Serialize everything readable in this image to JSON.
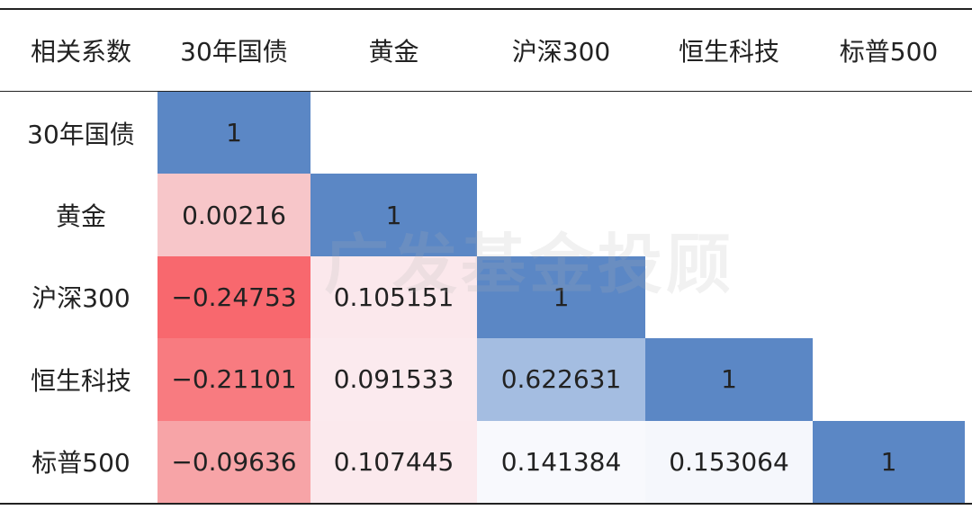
{
  "header": {
    "corner": "相关系数",
    "columns": [
      "30年国债",
      "黄金",
      "沪深300",
      "恒生科技",
      "标普500"
    ]
  },
  "table": {
    "row_labels": [
      "30年国债",
      "黄金",
      "沪深300",
      "恒生科技",
      "标普500"
    ],
    "rows": [
      [
        "1"
      ],
      [
        "0.00216",
        "1"
      ],
      [
        "−0.24753",
        "0.105151",
        "1"
      ],
      [
        "−0.21101",
        "0.091533",
        "0.622631",
        "1"
      ],
      [
        "−0.09636",
        "0.107445",
        "0.141384",
        "0.153064",
        "1"
      ]
    ],
    "cell_colors": [
      [
        "#5b87c5"
      ],
      [
        "#f7c6c9",
        "#5b87c5"
      ],
      [
        "#f8686e",
        "#fbe8ec",
        "#5b87c5"
      ],
      [
        "#f87b80",
        "#fbeaee",
        "#a4bde1",
        "#5b87c5"
      ],
      [
        "#f7a4a7",
        "#fbe9ed",
        "#f8f9fd",
        "#f5f7fc",
        "#5b87c5"
      ]
    ]
  },
  "watermark": "广发基金投顾"
}
